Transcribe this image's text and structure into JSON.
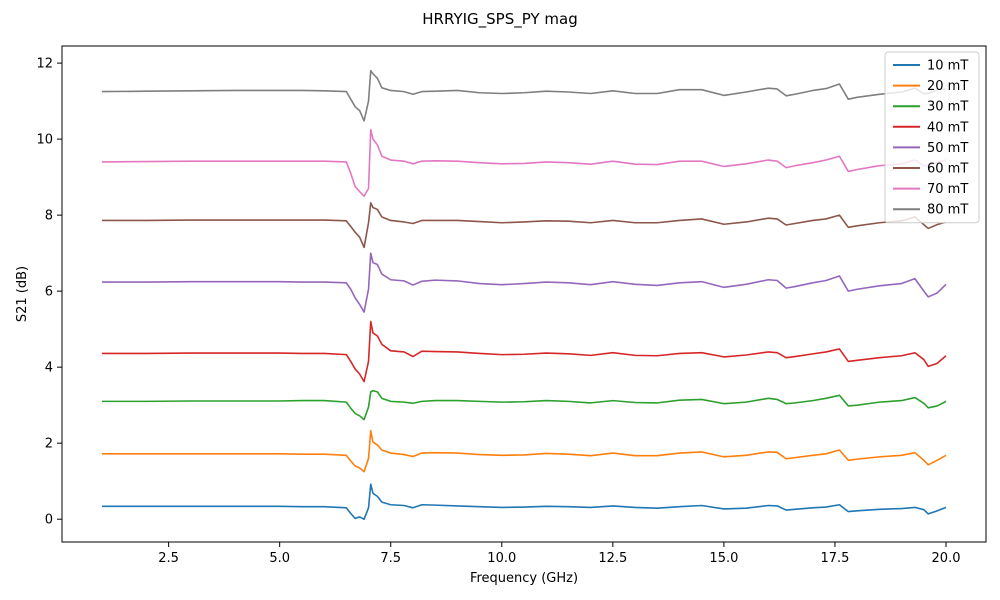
{
  "chart_data": {
    "type": "line",
    "title": "HRRYIG_SPS_PY mag",
    "xlabel": "Frequency (GHz)",
    "ylabel": "S21 (dB)",
    "xlim": [
      0.1,
      20.9
    ],
    "ylim": [
      -0.6,
      12.45
    ],
    "xticks": [
      2.5,
      5.0,
      7.5,
      10.0,
      12.5,
      15.0,
      17.5,
      20.0
    ],
    "xtick_labels": [
      "2.5",
      "5.0",
      "7.5",
      "10.0",
      "12.5",
      "15.0",
      "17.5",
      "20.0"
    ],
    "yticks": [
      0,
      2,
      4,
      6,
      8,
      10,
      12
    ],
    "ytick_labels": [
      "0",
      "2",
      "4",
      "6",
      "8",
      "10",
      "12"
    ],
    "grid": false,
    "legend_position": "top-right",
    "x": [
      1.0,
      2.0,
      3.0,
      4.0,
      5.0,
      5.5,
      6.0,
      6.5,
      6.6,
      6.7,
      6.8,
      6.9,
      7.0,
      7.05,
      7.1,
      7.2,
      7.3,
      7.5,
      7.8,
      8.0,
      8.2,
      8.5,
      9.0,
      9.5,
      10.0,
      10.5,
      11.0,
      11.5,
      12.0,
      12.5,
      13.0,
      13.5,
      14.0,
      14.5,
      15.0,
      15.5,
      16.0,
      16.2,
      16.4,
      16.6,
      17.0,
      17.3,
      17.6,
      17.8,
      18.0,
      18.5,
      19.0,
      19.3,
      19.5,
      19.6,
      19.8,
      20.0
    ],
    "series": [
      {
        "name": "10 mT",
        "color": "#1f77b4",
        "values": [
          0.34,
          0.34,
          0.34,
          0.34,
          0.34,
          0.33,
          0.33,
          0.3,
          0.15,
          0.02,
          0.06,
          0.0,
          0.3,
          0.92,
          0.68,
          0.6,
          0.45,
          0.38,
          0.36,
          0.3,
          0.38,
          0.37,
          0.35,
          0.33,
          0.31,
          0.32,
          0.34,
          0.33,
          0.31,
          0.35,
          0.31,
          0.29,
          0.33,
          0.36,
          0.27,
          0.29,
          0.36,
          0.35,
          0.24,
          0.26,
          0.3,
          0.32,
          0.38,
          0.2,
          0.22,
          0.26,
          0.28,
          0.31,
          0.25,
          0.14,
          0.22,
          0.31
        ]
      },
      {
        "name": "20 mT",
        "color": "#ff7f0e",
        "values": [
          1.72,
          1.72,
          1.72,
          1.72,
          1.72,
          1.71,
          1.71,
          1.68,
          1.53,
          1.4,
          1.35,
          1.25,
          1.6,
          2.33,
          2.03,
          1.95,
          1.82,
          1.74,
          1.7,
          1.65,
          1.74,
          1.75,
          1.74,
          1.7,
          1.68,
          1.69,
          1.73,
          1.71,
          1.67,
          1.74,
          1.67,
          1.67,
          1.74,
          1.77,
          1.64,
          1.68,
          1.77,
          1.76,
          1.59,
          1.62,
          1.68,
          1.72,
          1.82,
          1.55,
          1.58,
          1.64,
          1.68,
          1.75,
          1.55,
          1.43,
          1.55,
          1.68
        ]
      },
      {
        "name": "30 mT",
        "color": "#2ca02c",
        "values": [
          3.1,
          3.1,
          3.11,
          3.11,
          3.11,
          3.12,
          3.12,
          3.08,
          2.92,
          2.78,
          2.72,
          2.62,
          2.95,
          3.35,
          3.38,
          3.35,
          3.18,
          3.1,
          3.08,
          3.05,
          3.1,
          3.12,
          3.12,
          3.1,
          3.08,
          3.09,
          3.12,
          3.1,
          3.06,
          3.12,
          3.07,
          3.06,
          3.13,
          3.15,
          3.04,
          3.08,
          3.18,
          3.15,
          3.04,
          3.06,
          3.12,
          3.18,
          3.26,
          2.98,
          3.0,
          3.08,
          3.12,
          3.2,
          3.05,
          2.93,
          2.98,
          3.1
        ]
      },
      {
        "name": "40 mT",
        "color": "#d62728",
        "values": [
          4.36,
          4.36,
          4.37,
          4.37,
          4.37,
          4.36,
          4.36,
          4.33,
          4.15,
          3.95,
          3.82,
          3.62,
          4.15,
          5.2,
          4.9,
          4.82,
          4.6,
          4.43,
          4.4,
          4.28,
          4.42,
          4.41,
          4.4,
          4.36,
          4.33,
          4.34,
          4.37,
          4.35,
          4.31,
          4.38,
          4.31,
          4.3,
          4.36,
          4.38,
          4.27,
          4.32,
          4.4,
          4.38,
          4.25,
          4.28,
          4.35,
          4.4,
          4.48,
          4.15,
          4.18,
          4.25,
          4.3,
          4.38,
          4.2,
          4.02,
          4.1,
          4.3
        ]
      },
      {
        "name": "50 mT",
        "color": "#9467bd",
        "values": [
          6.24,
          6.24,
          6.25,
          6.25,
          6.25,
          6.24,
          6.24,
          6.22,
          6.05,
          5.82,
          5.65,
          5.45,
          6.05,
          7.0,
          6.75,
          6.7,
          6.45,
          6.3,
          6.27,
          6.16,
          6.26,
          6.29,
          6.27,
          6.2,
          6.17,
          6.2,
          6.24,
          6.22,
          6.17,
          6.25,
          6.18,
          6.15,
          6.22,
          6.25,
          6.1,
          6.18,
          6.3,
          6.28,
          6.08,
          6.12,
          6.22,
          6.28,
          6.4,
          6.0,
          6.05,
          6.14,
          6.2,
          6.33,
          6.0,
          5.85,
          5.95,
          6.18
        ]
      },
      {
        "name": "60 mT",
        "color": "#8c564b",
        "values": [
          7.86,
          7.86,
          7.87,
          7.87,
          7.87,
          7.87,
          7.87,
          7.85,
          7.7,
          7.55,
          7.42,
          7.15,
          7.8,
          8.32,
          8.2,
          8.15,
          7.95,
          7.86,
          7.82,
          7.78,
          7.86,
          7.86,
          7.86,
          7.83,
          7.8,
          7.82,
          7.85,
          7.84,
          7.8,
          7.86,
          7.8,
          7.8,
          7.86,
          7.9,
          7.76,
          7.82,
          7.92,
          7.9,
          7.74,
          7.78,
          7.86,
          7.9,
          8.0,
          7.68,
          7.72,
          7.8,
          7.85,
          7.95,
          7.75,
          7.65,
          7.75,
          7.82
        ]
      },
      {
        "name": "70 mT",
        "color": "#e377c2",
        "values": [
          9.4,
          9.41,
          9.42,
          9.42,
          9.42,
          9.42,
          9.42,
          9.4,
          9.1,
          8.75,
          8.62,
          8.5,
          8.7,
          10.25,
          10.0,
          9.85,
          9.55,
          9.45,
          9.42,
          9.35,
          9.42,
          9.43,
          9.42,
          9.38,
          9.35,
          9.36,
          9.4,
          9.38,
          9.34,
          9.42,
          9.34,
          9.33,
          9.42,
          9.42,
          9.28,
          9.35,
          9.45,
          9.42,
          9.25,
          9.3,
          9.38,
          9.45,
          9.55,
          9.15,
          9.2,
          9.3,
          9.35,
          9.45,
          9.3,
          9.3,
          9.38,
          9.45
        ]
      },
      {
        "name": "80 mT",
        "color": "#7f7f7f",
        "values": [
          11.25,
          11.26,
          11.27,
          11.28,
          11.28,
          11.28,
          11.27,
          11.25,
          11.05,
          10.85,
          10.75,
          10.48,
          11.0,
          11.8,
          11.72,
          11.6,
          11.35,
          11.28,
          11.25,
          11.18,
          11.25,
          11.26,
          11.28,
          11.22,
          11.2,
          11.22,
          11.26,
          11.24,
          11.2,
          11.27,
          11.2,
          11.2,
          11.3,
          11.3,
          11.15,
          11.24,
          11.34,
          11.32,
          11.14,
          11.18,
          11.28,
          11.33,
          11.45,
          11.05,
          11.1,
          11.18,
          11.24,
          11.34,
          11.2,
          11.2,
          11.3,
          11.32
        ]
      }
    ]
  }
}
